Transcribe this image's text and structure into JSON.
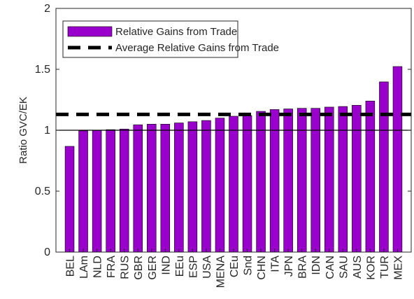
{
  "chart_data": {
    "type": "bar",
    "y_label": "Ratio GVC/EK",
    "categories": [
      "BEL",
      "LAm",
      "NLD",
      "FRA",
      "RUS",
      "GBR",
      "GER",
      "IND",
      "EEu",
      "ESP",
      "USA",
      "MENA",
      "CEu",
      "Snd",
      "CHN",
      "ITA",
      "JPN",
      "BRA",
      "IDN",
      "CAN",
      "SAU",
      "AUS",
      "KOR",
      "TUR",
      "MEX"
    ],
    "series": [
      {
        "name": "Relative Gains from Trade",
        "color": "#9a00cc",
        "values": [
          0.868,
          0.995,
          0.998,
          1.005,
          1.01,
          1.045,
          1.05,
          1.05,
          1.06,
          1.07,
          1.08,
          1.1,
          1.115,
          1.12,
          1.155,
          1.17,
          1.175,
          1.18,
          1.18,
          1.19,
          1.195,
          1.205,
          1.24,
          1.397,
          1.523
        ]
      }
    ],
    "average": {
      "name": "Average Relative Gains from Trade",
      "value": 1.13,
      "color": "#000000"
    },
    "reference_line": 1,
    "ylim": [
      0,
      2
    ],
    "yticks": [
      0,
      0.5,
      1,
      1.5,
      2
    ],
    "legend": "upper left"
  }
}
